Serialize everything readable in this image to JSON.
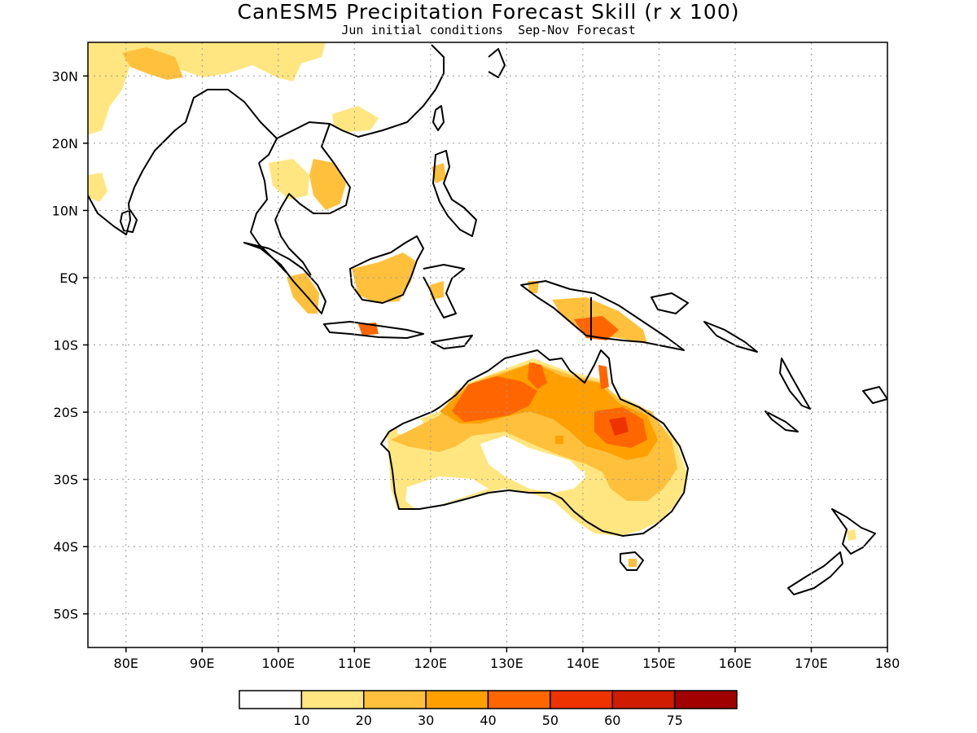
{
  "title": "CanESM5 Precipitation Forecast Skill (r x 100)",
  "subtitle": "Jun initial conditions  Sep-Nov Forecast",
  "map": {
    "lon_range": [
      75,
      180
    ],
    "lat_range": [
      -55,
      35
    ],
    "lat_ticks": [
      {
        "value": 30,
        "label": "30N"
      },
      {
        "value": 20,
        "label": "20N"
      },
      {
        "value": 10,
        "label": "10N"
      },
      {
        "value": 0,
        "label": "EQ"
      },
      {
        "value": -10,
        "label": "10S"
      },
      {
        "value": -20,
        "label": "20S"
      },
      {
        "value": -30,
        "label": "30S"
      },
      {
        "value": -40,
        "label": "40S"
      },
      {
        "value": -50,
        "label": "50S"
      }
    ],
    "lon_ticks": [
      {
        "value": 80,
        "label": "80E"
      },
      {
        "value": 90,
        "label": "90E"
      },
      {
        "value": 100,
        "label": "100E"
      },
      {
        "value": 110,
        "label": "110E"
      },
      {
        "value": 120,
        "label": "120E"
      },
      {
        "value": 130,
        "label": "130E"
      },
      {
        "value": 140,
        "label": "140E"
      },
      {
        "value": 150,
        "label": "150E"
      },
      {
        "value": 160,
        "label": "160E"
      },
      {
        "value": 170,
        "label": "170E"
      },
      {
        "value": 180,
        "label": "180"
      }
    ],
    "colorbar": {
      "colors": [
        "#ffffff",
        "#ffe680",
        "#ffc03c",
        "#ffa000",
        "#ff6600",
        "#ee3300",
        "#d01c00",
        "#a00000"
      ],
      "labels": [
        "10",
        "20",
        "30",
        "40",
        "50",
        "60",
        "75"
      ]
    }
  }
}
